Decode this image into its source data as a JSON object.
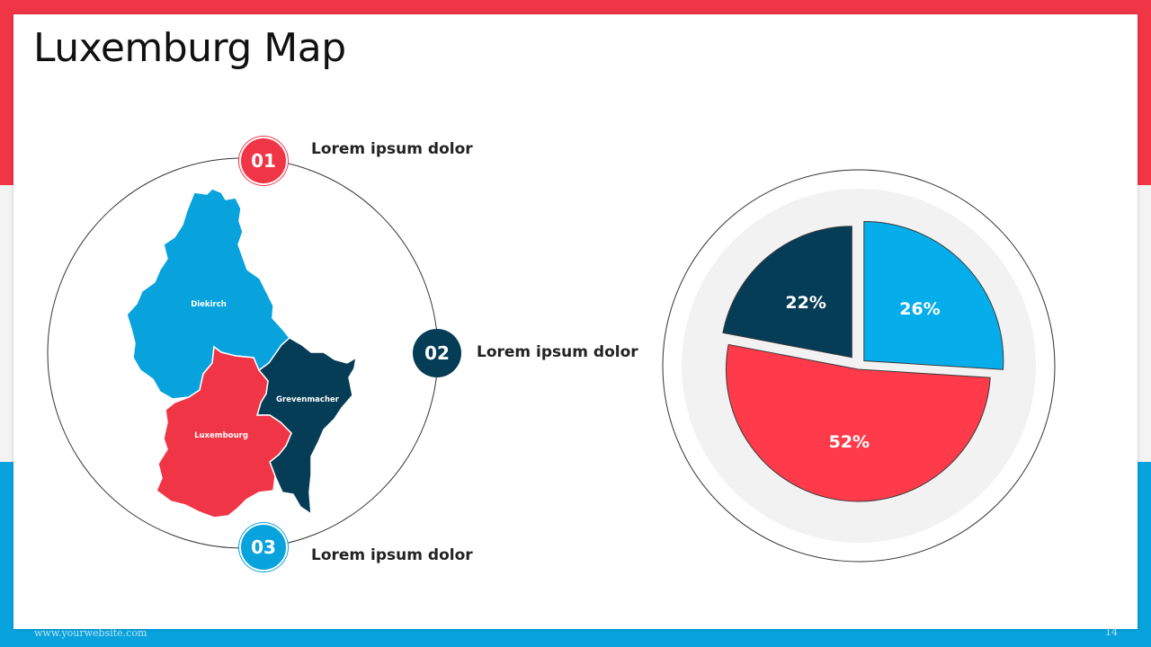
{
  "slide": {
    "title": "Luxemburg Map",
    "footer_url": "www.yourwebsite.com",
    "page_number": "14"
  },
  "colors": {
    "red": "#f03546",
    "navy": "#053c56",
    "blue": "#08a2dd",
    "pie_red": "#ff3a4a",
    "pie_blue": "#05aeea"
  },
  "points": [
    {
      "number": "01",
      "label": "Lorem ipsum dolor"
    },
    {
      "number": "02",
      "label": "Lorem ipsum dolor"
    },
    {
      "number": "03",
      "label": "Lorem ipsum dolor"
    }
  ],
  "map": {
    "regions": [
      {
        "name": "Diekirch",
        "color": "#08a2dd"
      },
      {
        "name": "Grevenmacher",
        "color": "#053c56"
      },
      {
        "name": "Luxembourg",
        "color": "#f03546"
      }
    ]
  },
  "chart_data": {
    "type": "pie",
    "title": "",
    "slices": [
      {
        "label": "26%",
        "value": 26,
        "color": "#05aeea"
      },
      {
        "label": "52%",
        "value": 52,
        "color": "#ff3a4a"
      },
      {
        "label": "22%",
        "value": 22,
        "color": "#053c56"
      }
    ],
    "start_angle_deg": 0,
    "direction": "clockwise",
    "legend": "none"
  }
}
